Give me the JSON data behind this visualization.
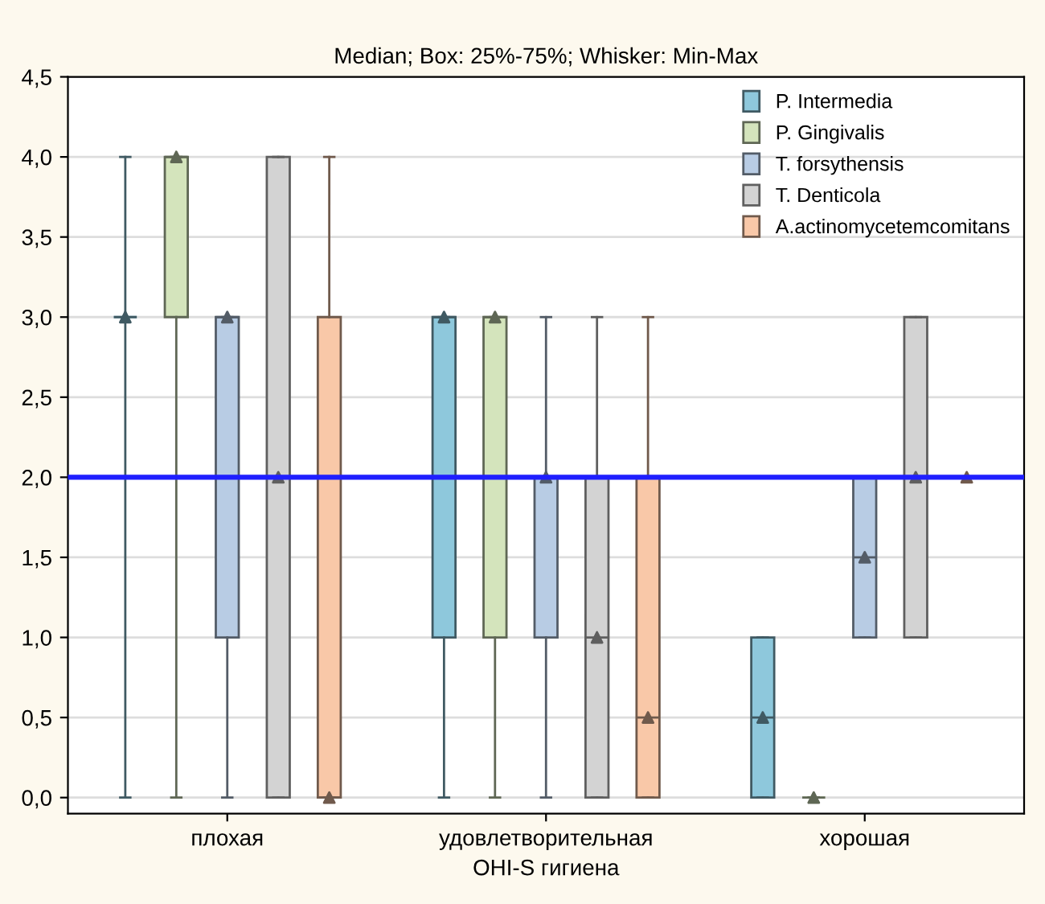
{
  "chart_data": {
    "type": "box",
    "title": "Median; Box: 25%-75%; Whisker: Min-Max",
    "xlabel": "OHI-S гигиена",
    "categories": [
      "плохая",
      "удовлетворительная",
      "хорошая"
    ],
    "ylim": [
      -0.1,
      4.5
    ],
    "yticks": [
      {
        "value": 0,
        "label": "0,0"
      },
      {
        "value": 0.5,
        "label": "0,5"
      },
      {
        "value": 1,
        "label": "1,0"
      },
      {
        "value": 1.5,
        "label": "1,5"
      },
      {
        "value": 2,
        "label": "2,0"
      },
      {
        "value": 2.5,
        "label": "2,5"
      },
      {
        "value": 3,
        "label": "3,0"
      },
      {
        "value": 3.5,
        "label": "3,5"
      },
      {
        "value": 4,
        "label": "4,0"
      },
      {
        "value": 4.5,
        "label": "4,5"
      }
    ],
    "grid": "y",
    "legend": "top right",
    "marker": "triangle",
    "ref_lines": [
      {
        "axis": "y",
        "value": 2,
        "label": null,
        "color": "#1f1fff"
      }
    ],
    "series": [
      {
        "name": "P. Intermedia",
        "color": "#8ec8dc",
        "boxes": [
          {
            "low": 0,
            "q1": 3,
            "median": 3,
            "q3": 3,
            "high": 4
          },
          {
            "low": 0,
            "q1": 1,
            "median": 3,
            "q3": 3,
            "high": 3
          },
          {
            "low": 0,
            "q1": 0,
            "median": 0.5,
            "q3": 1,
            "high": 1
          }
        ]
      },
      {
        "name": "P. Gingivalis",
        "color": "#d4e4bc",
        "boxes": [
          {
            "low": 0,
            "q1": 3,
            "median": 4,
            "q3": 4,
            "high": 4
          },
          {
            "low": 0,
            "q1": 1,
            "median": 3,
            "q3": 3,
            "high": 3
          },
          {
            "low": 0,
            "q1": 0,
            "median": 0,
            "q3": 0,
            "high": 0
          }
        ]
      },
      {
        "name": "T. forsythensis",
        "color": "#b8cce4",
        "boxes": [
          {
            "low": 0,
            "q1": 1,
            "median": 3,
            "q3": 3,
            "high": 3
          },
          {
            "low": 0,
            "q1": 1,
            "median": 2,
            "q3": 2,
            "high": 3
          },
          {
            "low": 1,
            "q1": 1,
            "median": 1.5,
            "q3": 2,
            "high": 2
          }
        ]
      },
      {
        "name": "T. Denticola",
        "color": "#d3d3d3",
        "boxes": [
          {
            "low": 0,
            "q1": 0,
            "median": 2,
            "q3": 4,
            "high": 4
          },
          {
            "low": 0,
            "q1": 0,
            "median": 1,
            "q3": 2,
            "high": 3
          },
          {
            "low": 1,
            "q1": 1,
            "median": 2,
            "q3": 3,
            "high": 3
          }
        ]
      },
      {
        "name": "A.actinomycetemcomitans",
        "color": "#f9c8a8",
        "boxes": [
          {
            "low": 0,
            "q1": 0,
            "median": 0,
            "q3": 3,
            "high": 4
          },
          {
            "low": 0,
            "q1": 0,
            "median": 0.5,
            "q3": 2,
            "high": 3
          },
          {
            "low": 2,
            "q1": 2,
            "median": 2,
            "q3": 2,
            "high": 2
          }
        ]
      }
    ]
  }
}
